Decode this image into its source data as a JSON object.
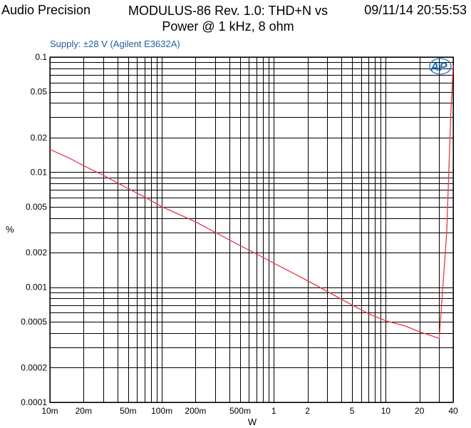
{
  "header": {
    "left": "Audio Precision",
    "title_line1": "MODULUS-86 Rev. 1.0: THD+N vs",
    "title_line2": "Power @ 1 kHz, 8 ohm",
    "timestamp": "09/11/14 20:55:53"
  },
  "annotation": "Supply: ±28 V (Agilent E3632A)",
  "logo_text": "AP",
  "colors": {
    "trace": "#e8384a",
    "annotation": "#1f5f9f",
    "logo": "#1f6fb7"
  },
  "chart_data": {
    "type": "line",
    "xscale": "log",
    "yscale": "log",
    "xlabel": "W",
    "ylabel": "%",
    "xlim": [
      0.01,
      40
    ],
    "ylim": [
      0.0001,
      0.1
    ],
    "grid": true,
    "x_ticks": [
      {
        "v": 0.01,
        "label": "10m"
      },
      {
        "v": 0.02,
        "label": "20m"
      },
      {
        "v": 0.05,
        "label": "50m"
      },
      {
        "v": 0.1,
        "label": "100m"
      },
      {
        "v": 0.2,
        "label": "200m"
      },
      {
        "v": 0.5,
        "label": "500m"
      },
      {
        "v": 1,
        "label": "1"
      },
      {
        "v": 2,
        "label": "2"
      },
      {
        "v": 5,
        "label": "5"
      },
      {
        "v": 10,
        "label": "10"
      },
      {
        "v": 20,
        "label": "20"
      },
      {
        "v": 40,
        "label": "40"
      }
    ],
    "y_ticks": [
      {
        "v": 0.0001,
        "label": "0.0001"
      },
      {
        "v": 0.0002,
        "label": "0.0002"
      },
      {
        "v": 0.0005,
        "label": "0.0005"
      },
      {
        "v": 0.001,
        "label": "0.001"
      },
      {
        "v": 0.002,
        "label": "0.002"
      },
      {
        "v": 0.005,
        "label": "0.005"
      },
      {
        "v": 0.01,
        "label": "0.01"
      },
      {
        "v": 0.02,
        "label": "0.02"
      },
      {
        "v": 0.05,
        "label": "0.05"
      },
      {
        "v": 0.1,
        "label": "0.1"
      }
    ],
    "series": [
      {
        "x": [
          0.01,
          0.015,
          0.02,
          0.03,
          0.05,
          0.07,
          0.1,
          0.15,
          0.2,
          0.3,
          0.5,
          0.7,
          1,
          1.5,
          2,
          3,
          5,
          7,
          10,
          15,
          20,
          30,
          35,
          38,
          40
        ],
        "y": [
          0.0158,
          0.0132,
          0.0114,
          0.0094,
          0.0072,
          0.0061,
          0.005,
          0.0042,
          0.0037,
          0.003,
          0.0023,
          0.00195,
          0.00162,
          0.00132,
          0.00114,
          0.00092,
          0.0007,
          0.00059,
          0.00051,
          0.00046,
          0.00041,
          0.00036,
          0.003,
          0.03,
          0.085
        ]
      }
    ]
  }
}
